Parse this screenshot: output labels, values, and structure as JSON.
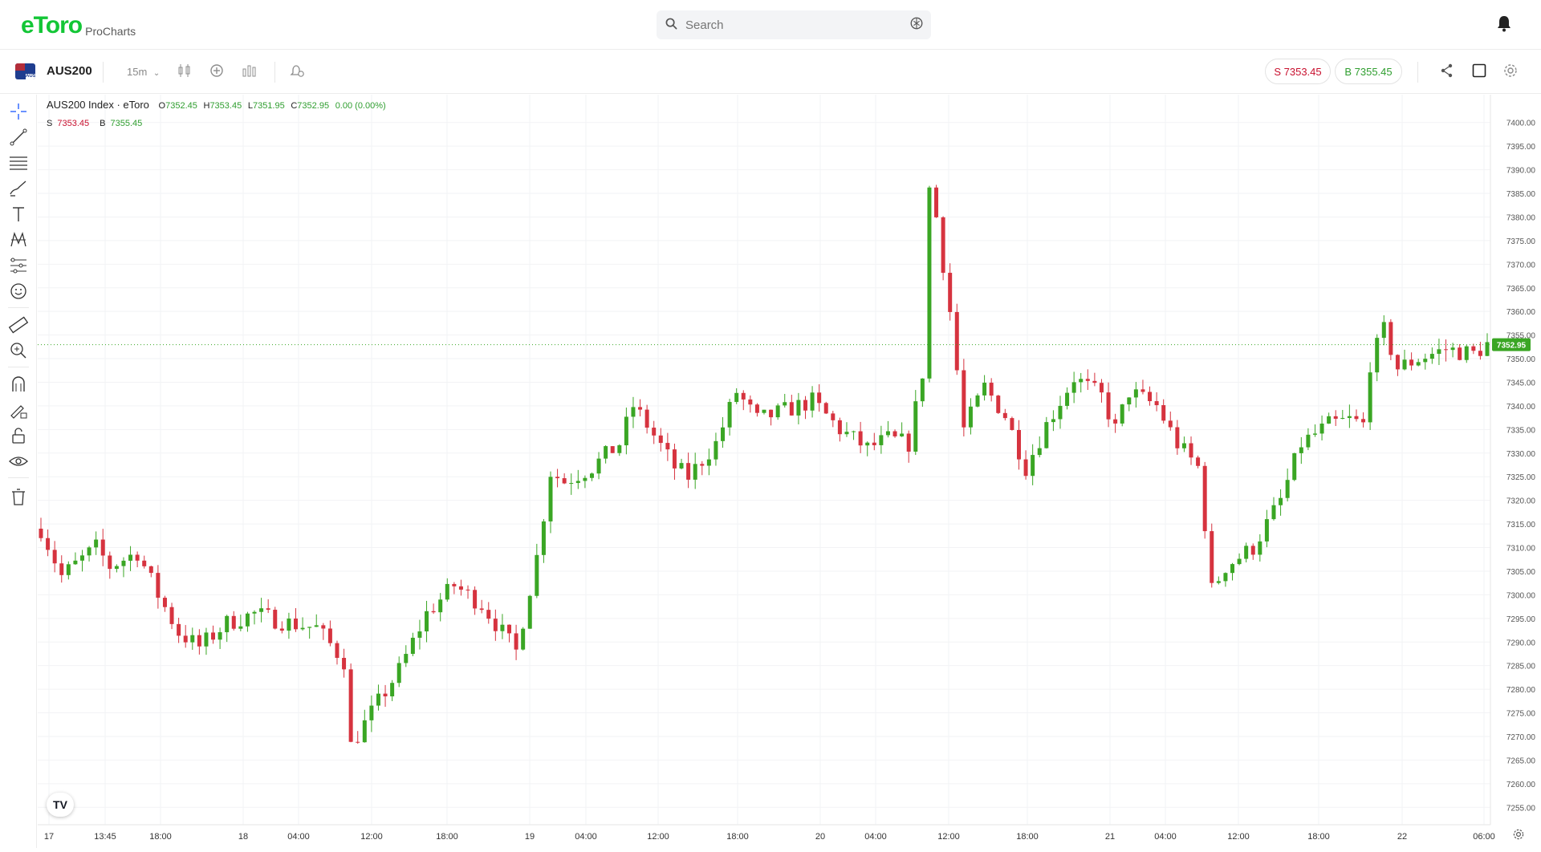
{
  "header": {
    "logo_text": "eToro",
    "logo_sub": "ProCharts",
    "search_placeholder": "Search"
  },
  "toolbar": {
    "symbol": "AUS200",
    "flag_label": "AUS",
    "interval": "15m",
    "sell_label": "S 7353.45",
    "buy_label": "B 7355.45"
  },
  "legend": {
    "title": "AUS200 Index · eToro",
    "open_label": "O",
    "open": "7352.45",
    "high_label": "H",
    "high": "7353.45",
    "low_label": "L",
    "low": "7351.95",
    "close_label": "C",
    "close": "7352.95",
    "change": "0.00 (0.00%)",
    "sell_label": "S",
    "sell": "7353.45",
    "buy_label": "B",
    "buy": "7355.45"
  },
  "tv_logo": "TV",
  "colors": {
    "up": "#3aa624",
    "down": "#d6333f",
    "brand": "#13c636"
  },
  "chart_data": {
    "type": "candlestick",
    "yticks": [
      "7400.00",
      "7395.00",
      "7390.00",
      "7385.00",
      "7380.00",
      "7375.00",
      "7370.00",
      "7365.00",
      "7360.00",
      "7355.00",
      "7350.00",
      "7345.00",
      "7340.00",
      "7335.00",
      "7330.00",
      "7325.00",
      "7320.00",
      "7315.00",
      "7310.00",
      "7305.00",
      "7300.00",
      "7295.00",
      "7290.00",
      "7285.00",
      "7280.00",
      "7275.00",
      "7270.00",
      "7265.00",
      "7260.00",
      "7255.00"
    ],
    "ylim": [
      7253,
      7402
    ],
    "last_price": "7352.95",
    "xticks": [
      "17",
      "13:45",
      "18:00",
      "18",
      "04:00",
      "12:00",
      "18:00",
      "19",
      "04:00",
      "12:00",
      "18:00",
      "20",
      "04:00",
      "12:00",
      "18:00",
      "21",
      "04:00",
      "12:00",
      "18:00",
      "22",
      "06:00"
    ],
    "price_path": [
      [
        0,
        7314
      ],
      [
        3,
        7304
      ],
      [
        8,
        7310
      ],
      [
        10,
        7306
      ],
      [
        14,
        7309
      ],
      [
        17,
        7300
      ],
      [
        20,
        7292
      ],
      [
        23,
        7289
      ],
      [
        27,
        7294
      ],
      [
        31,
        7296
      ],
      [
        36,
        7294
      ],
      [
        40,
        7293
      ],
      [
        44,
        7286
      ],
      [
        45,
        7268
      ],
      [
        48,
        7275
      ],
      [
        52,
        7284
      ],
      [
        56,
        7296
      ],
      [
        60,
        7302
      ],
      [
        64,
        7298
      ],
      [
        67,
        7292
      ],
      [
        69,
        7288
      ],
      [
        72,
        7308
      ],
      [
        74,
        7326
      ],
      [
        76,
        7324
      ],
      [
        80,
        7327
      ],
      [
        84,
        7332
      ],
      [
        86,
        7340
      ],
      [
        88,
        7336
      ],
      [
        92,
        7327
      ],
      [
        94,
        7325
      ],
      [
        98,
        7332
      ],
      [
        101,
        7343
      ],
      [
        104,
        7337
      ],
      [
        108,
        7339
      ],
      [
        112,
        7341
      ],
      [
        116,
        7335
      ],
      [
        120,
        7331
      ],
      [
        123,
        7333
      ],
      [
        126,
        7332
      ],
      [
        128,
        7347
      ],
      [
        129,
        7386
      ],
      [
        130,
        7380
      ],
      [
        132,
        7360
      ],
      [
        134,
        7335
      ],
      [
        137,
        7344
      ],
      [
        140,
        7338
      ],
      [
        143,
        7327
      ],
      [
        146,
        7336
      ],
      [
        150,
        7346
      ],
      [
        154,
        7342
      ],
      [
        156,
        7335
      ],
      [
        158,
        7343
      ],
      [
        162,
        7340
      ],
      [
        165,
        7332
      ],
      [
        168,
        7327
      ],
      [
        169,
        7315
      ],
      [
        170,
        7301
      ],
      [
        172,
        7306
      ],
      [
        176,
        7310
      ],
      [
        180,
        7320
      ],
      [
        183,
        7332
      ],
      [
        187,
        7336
      ],
      [
        190,
        7337
      ],
      [
        192,
        7336
      ],
      [
        193,
        7349
      ],
      [
        195,
        7356
      ],
      [
        197,
        7348
      ],
      [
        200,
        7350
      ],
      [
        204,
        7352
      ],
      [
        208,
        7351
      ],
      [
        210,
        7353
      ]
    ]
  }
}
